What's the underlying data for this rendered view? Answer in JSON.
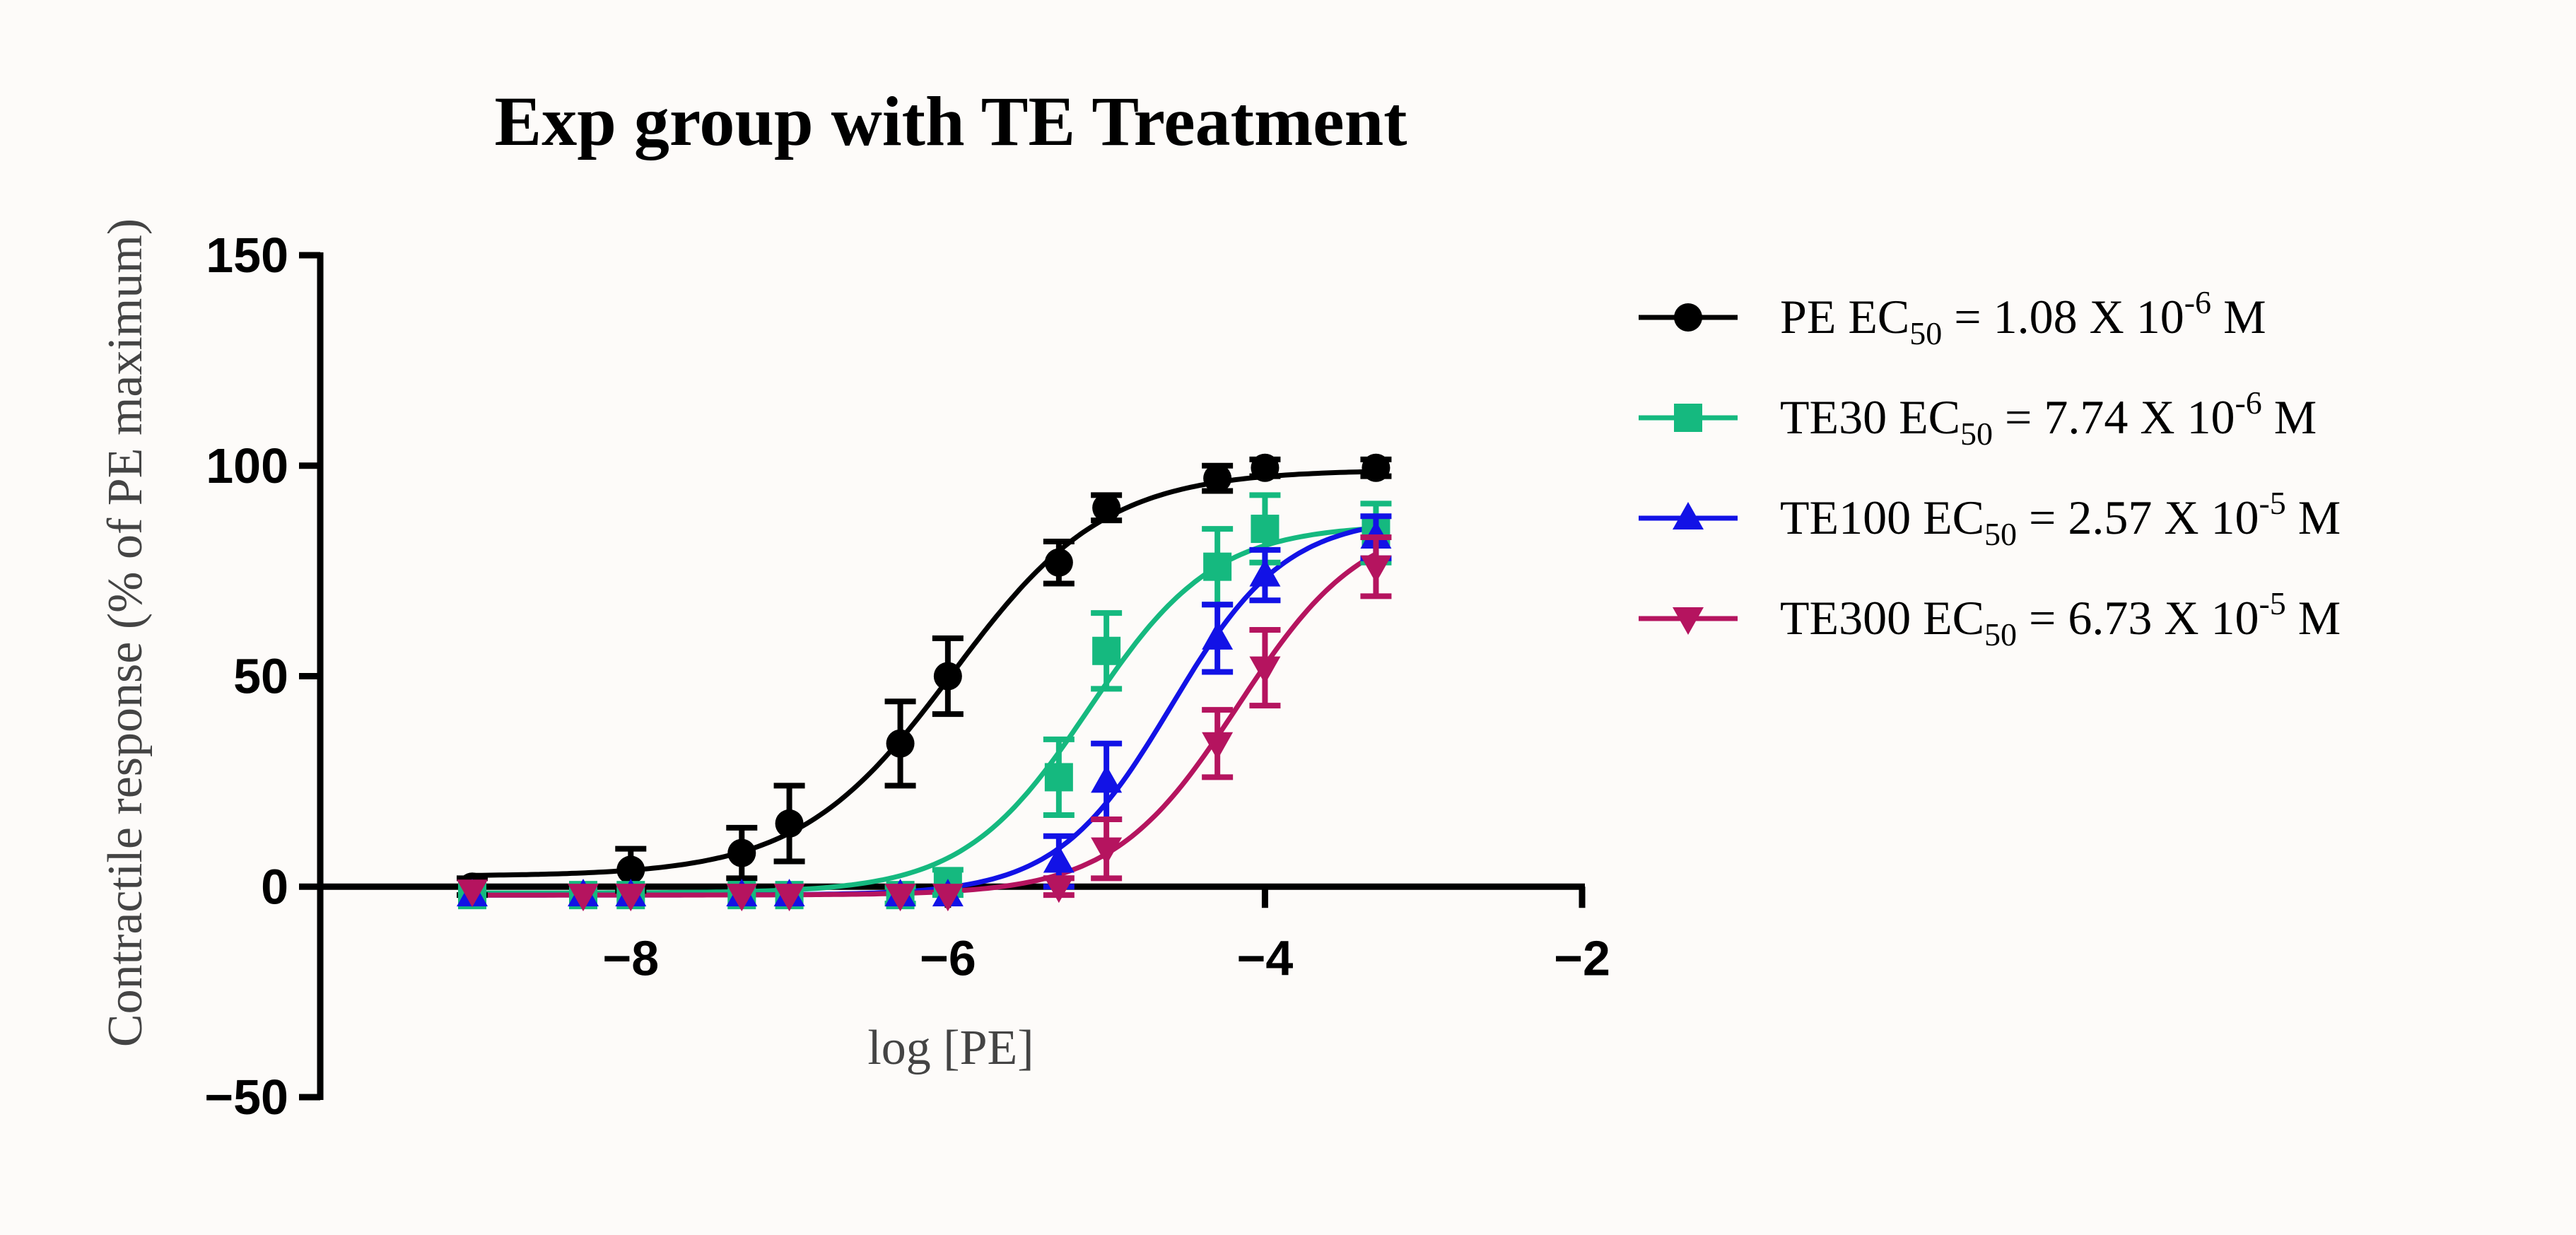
{
  "colors": {
    "background": "#fdfbf9",
    "axis": "#000000"
  },
  "chart_data": {
    "type": "scatter",
    "title": "Exp group with TE Treatment",
    "xlabel": "log [PE]",
    "ylabel": "Contractile response (% of PE maximum)",
    "xlim": [
      -9,
      -2
    ],
    "ylim": [
      -50,
      150
    ],
    "xticks": [
      -8,
      -6,
      -4,
      -2
    ],
    "xtick_labels": [
      "−8",
      "−6",
      "−4",
      "−2"
    ],
    "yticks": [
      -50,
      0,
      50,
      100,
      150
    ],
    "ytick_labels": [
      "−50",
      "0",
      "50",
      "100",
      "150"
    ],
    "x_axis_crosses_at_y": 0,
    "grid": false,
    "legend_position": "right",
    "series": [
      {
        "name": "PE",
        "ec50_label": "EC",
        "ec50_sub": "50",
        "ec50_text": " = 1.08 X 10",
        "ec50_exp": "-6",
        "ec50_unit": " M",
        "marker": "circle",
        "color": "#000000",
        "fit": {
          "bottom": 2.5,
          "top": 99,
          "logEC50": -5.97,
          "hill": 0.9
        },
        "points": [
          {
            "x": -9.0,
            "y": 0,
            "err": 2
          },
          {
            "x": -8.0,
            "y": 4,
            "err": 5
          },
          {
            "x": -7.3,
            "y": 8,
            "err": 6
          },
          {
            "x": -7.0,
            "y": 15,
            "err": 9
          },
          {
            "x": -6.3,
            "y": 34,
            "err": 10
          },
          {
            "x": -6.0,
            "y": 50,
            "err": 9
          },
          {
            "x": -5.3,
            "y": 77,
            "err": 5
          },
          {
            "x": -5.0,
            "y": 90,
            "err": 3
          },
          {
            "x": -4.3,
            "y": 97,
            "err": 3
          },
          {
            "x": -4.0,
            "y": 99.5,
            "err": 2
          },
          {
            "x": -3.3,
            "y": 99.5,
            "err": 2
          }
        ]
      },
      {
        "name": "TE30",
        "ec50_label": "EC",
        "ec50_sub": "50",
        "ec50_text": " = 7.74 X 10",
        "ec50_exp": "-6",
        "ec50_unit": " M",
        "marker": "square",
        "color": "#15b97f",
        "fit": {
          "bottom": -1.5,
          "top": 86,
          "logEC50": -5.11,
          "hill": 1.1
        },
        "points": [
          {
            "x": -9.0,
            "y": -2,
            "err": 1
          },
          {
            "x": -8.3,
            "y": -2,
            "err": 1
          },
          {
            "x": -8.0,
            "y": -2,
            "err": 1
          },
          {
            "x": -7.3,
            "y": -2,
            "err": 1
          },
          {
            "x": -7.0,
            "y": -2,
            "err": 1
          },
          {
            "x": -6.3,
            "y": -2,
            "err": 2
          },
          {
            "x": -6.0,
            "y": 1,
            "err": 3
          },
          {
            "x": -5.3,
            "y": 26,
            "err": 9
          },
          {
            "x": -5.0,
            "y": 56,
            "err": 9
          },
          {
            "x": -4.3,
            "y": 76,
            "err": 9
          },
          {
            "x": -4.0,
            "y": 85,
            "err": 8
          },
          {
            "x": -3.3,
            "y": 84,
            "err": 7
          }
        ]
      },
      {
        "name": "TE100",
        "ec50_label": "EC",
        "ec50_sub": "50",
        "ec50_text": " = 2.57 X 10",
        "ec50_exp": "-5",
        "ec50_unit": " M",
        "marker": "triangle-up",
        "color": "#1212e6",
        "fit": {
          "bottom": -2,
          "top": 88,
          "logEC50": -4.59,
          "hill": 1.2
        },
        "points": [
          {
            "x": -9.0,
            "y": -2,
            "err": 1
          },
          {
            "x": -8.3,
            "y": -2,
            "err": 1
          },
          {
            "x": -8.0,
            "y": -2,
            "err": 1
          },
          {
            "x": -7.3,
            "y": -2,
            "err": 1
          },
          {
            "x": -7.0,
            "y": -2,
            "err": 1
          },
          {
            "x": -6.3,
            "y": -2,
            "err": 1
          },
          {
            "x": -6.0,
            "y": -2,
            "err": 1
          },
          {
            "x": -5.3,
            "y": 6,
            "err": 6
          },
          {
            "x": -5.0,
            "y": 25,
            "err": 9
          },
          {
            "x": -4.3,
            "y": 59,
            "err": 8
          },
          {
            "x": -4.0,
            "y": 74,
            "err": 6
          },
          {
            "x": -3.3,
            "y": 83,
            "err": 5
          }
        ]
      },
      {
        "name": "TE300",
        "ec50_label": "EC",
        "ec50_sub": "50",
        "ec50_text": " = 6.73 X 10",
        "ec50_exp": "-5",
        "ec50_unit": " M",
        "marker": "triangle-down",
        "color": "#b5145f",
        "fit": {
          "bottom": -2,
          "top": 88,
          "logEC50": -4.17,
          "hill": 1.1
        },
        "points": [
          {
            "x": -9.0,
            "y": -1,
            "err": 1
          },
          {
            "x": -8.3,
            "y": -2,
            "err": 1
          },
          {
            "x": -8.0,
            "y": -2,
            "err": 1
          },
          {
            "x": -7.3,
            "y": -2,
            "err": 1
          },
          {
            "x": -7.0,
            "y": -2,
            "err": 1
          },
          {
            "x": -6.3,
            "y": -2,
            "err": 1
          },
          {
            "x": -6.0,
            "y": -2,
            "err": 1
          },
          {
            "x": -5.3,
            "y": 0,
            "err": 2
          },
          {
            "x": -5.0,
            "y": 9,
            "err": 7
          },
          {
            "x": -4.3,
            "y": 34,
            "err": 8
          },
          {
            "x": -4.0,
            "y": 52,
            "err": 9
          },
          {
            "x": -3.3,
            "y": 76,
            "err": 7
          }
        ]
      }
    ]
  }
}
